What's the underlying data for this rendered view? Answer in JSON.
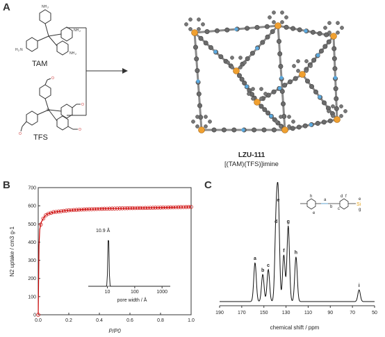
{
  "panels": {
    "a": {
      "letter": "A",
      "molecules": [
        "TAM",
        "TFS"
      ],
      "substituents": {
        "amine": "NH2"
      },
      "cof_name": "LZU-111",
      "cof_formula": "[(TAM)(TFS)]imine"
    },
    "b": {
      "letter": "B",
      "chart_data": {
        "type": "scatter",
        "title": "",
        "xlabel": "P/P0",
        "ylabel": "N2 uptake / cm3 g-1",
        "xlim": [
          0,
          1.0
        ],
        "ylim": [
          0,
          700
        ],
        "xticks": [
          "0.0",
          "0.2",
          "0.4",
          "0.6",
          "0.8",
          "1.0"
        ],
        "yticks": [
          "0",
          "100",
          "200",
          "300",
          "400",
          "500",
          "600",
          "700"
        ],
        "series": [
          {
            "name": "",
            "x": [
              0.0,
              0.005,
              0.01,
              0.02,
              0.04,
              0.06,
              0.1,
              0.2,
              0.3,
              0.4,
              0.5,
              0.6,
              0.7,
              0.8,
              0.9,
              1.0
            ],
            "y": [
              0,
              380,
              470,
              510,
              540,
              555,
              565,
              575,
              580,
              583,
              585,
              587,
              588,
              590,
              592,
              594
            ]
          }
        ],
        "inset": {
          "type": "line",
          "annotation": "10.9 Å",
          "xlabel": "pore width / Å",
          "xticks": [
            "10",
            "100",
            "1000"
          ],
          "peak_x": 10.9
        }
      }
    },
    "c": {
      "letter": "C",
      "chart_data": {
        "type": "line",
        "title": "",
        "xlabel": "chemical shift / ppm",
        "ylabel": "",
        "xlim": [
          190,
          50
        ],
        "xticks": [
          "190",
          "170",
          "150",
          "130",
          "110",
          "90",
          "70",
          "50"
        ],
        "peaks": [
          {
            "label": "a",
            "x": 158,
            "height": 0.4
          },
          {
            "label": "b",
            "x": 151,
            "height": 0.28
          },
          {
            "label": "c",
            "x": 146,
            "height": 0.33
          },
          {
            "label": "d",
            "x": 139,
            "height": 0.78
          },
          {
            "label": "e",
            "x": 137,
            "height": 1.0
          },
          {
            "label": "f",
            "x": 132,
            "height": 0.48
          },
          {
            "label": "g",
            "x": 128,
            "height": 0.78
          },
          {
            "label": "h",
            "x": 121,
            "height": 0.46
          },
          {
            "label": "i",
            "x": 64,
            "height": 0.12
          }
        ],
        "structure_labels": [
          "h",
          "a",
          "b",
          "c",
          "d",
          "e",
          "f",
          "g",
          "e"
        ]
      }
    }
  }
}
